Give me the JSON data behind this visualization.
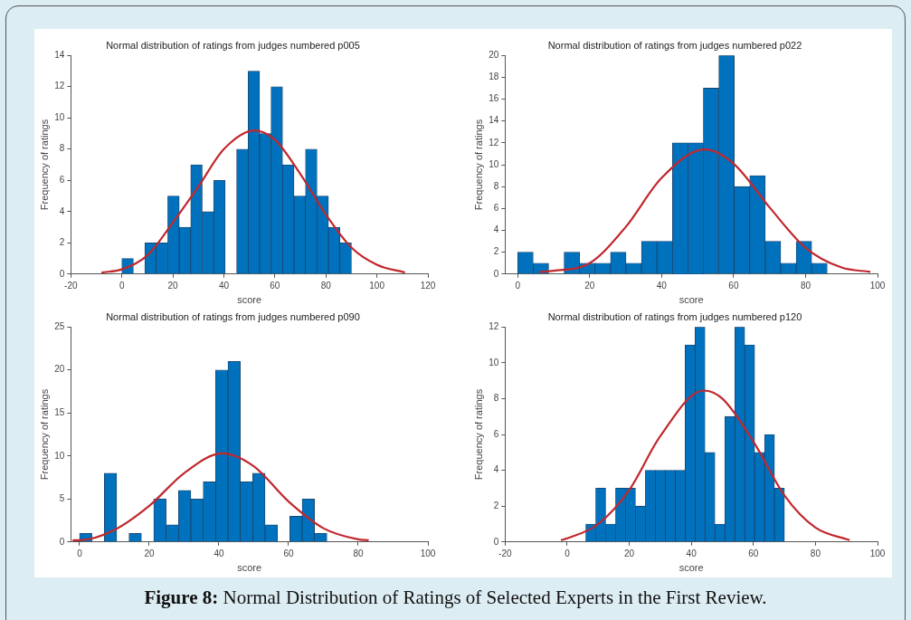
{
  "chart_data": [
    {
      "type": "histogram",
      "title": "Normal distribution of ratings from judges numbered p005",
      "xlabel": "score",
      "ylabel": "Frequency of ratings",
      "color": "#0072bd",
      "bins": [
        0,
        4.5,
        9,
        13.5,
        18,
        22.5,
        27,
        31.5,
        36,
        40.5,
        45,
        49.5,
        54,
        58.5,
        63,
        67.5,
        72,
        76.5,
        81,
        85.5,
        90
      ],
      "values": [
        1,
        0,
        2,
        2,
        5,
        3,
        7,
        4,
        6,
        0,
        8,
        13,
        9,
        12,
        7,
        5,
        8,
        5,
        3,
        2
      ],
      "series": [
        {
          "type": "line",
          "color": "#c1272d",
          "x": [
            -8,
            0,
            10,
            20,
            30,
            40,
            52,
            60,
            70,
            80,
            90,
            100,
            111
          ],
          "values": [
            0.1,
            0.3,
            1.2,
            3.3,
            5.6,
            8.0,
            9.2,
            8.6,
            6.4,
            3.8,
            1.7,
            0.6,
            0.1
          ]
        }
      ],
      "xlim": [
        -20,
        120
      ],
      "xticks": [
        -20,
        0,
        20,
        40,
        60,
        80,
        100,
        120
      ],
      "ylim": [
        0,
        14
      ],
      "yticks": [
        0,
        2,
        4,
        6,
        8,
        10,
        12,
        14
      ],
      "grid": false,
      "annotations": [
        "Figure 8: Normal Distribution of Ratings of Selected Experts in the First Review."
      ]
    },
    {
      "type": "histogram",
      "title": "Normal distribution of ratings from judges numbered p022",
      "xlabel": "score",
      "ylabel": "Frequency of ratings",
      "color": "#0072bd",
      "bins": [
        0,
        4.3,
        8.6,
        12.9,
        17.2,
        21.5,
        25.8,
        30.1,
        34.4,
        38.7,
        43,
        47.3,
        51.6,
        55.9,
        60.2,
        64.5,
        68.8,
        73.1,
        77.4,
        81.7,
        86
      ],
      "values": [
        2,
        1,
        0,
        2,
        1,
        1,
        2,
        1,
        3,
        3,
        12,
        12,
        17,
        20,
        8,
        9,
        3,
        1,
        3,
        1
      ],
      "series": [
        {
          "type": "line",
          "color": "#c1272d",
          "x": [
            6,
            10,
            20,
            30,
            40,
            52,
            60,
            70,
            80,
            90,
            98
          ],
          "values": [
            0.2,
            0.3,
            1.0,
            4.3,
            8.8,
            11.4,
            10.1,
            6.1,
            2.4,
            0.6,
            0.2
          ]
        }
      ],
      "xlim": [
        -3.5,
        100
      ],
      "xticks": [
        0,
        20,
        40,
        60,
        80,
        100
      ],
      "ylim": [
        0,
        20
      ],
      "yticks": [
        0,
        2,
        4,
        6,
        8,
        10,
        12,
        14,
        16,
        18,
        20
      ],
      "grid": false
    },
    {
      "type": "histogram",
      "title": "Normal distribution of ratings from judges numbered p090",
      "xlabel": "score",
      "ylabel": "Frequency of ratings",
      "color": "#0072bd",
      "bins": [
        0,
        3.55,
        7.1,
        10.65,
        14.2,
        17.75,
        21.3,
        24.85,
        28.4,
        31.95,
        35.5,
        39.05,
        42.6,
        46.15,
        49.7,
        53.25,
        56.8,
        60.35,
        63.9,
        67.45,
        71
      ],
      "values": [
        1,
        0,
        8,
        0,
        1,
        0,
        5,
        2,
        6,
        5,
        7,
        20,
        21,
        7,
        8,
        2,
        0,
        3,
        5,
        1
      ],
      "series": [
        {
          "type": "line",
          "color": "#c1272d",
          "x": [
            -2,
            0,
            10,
            20,
            30,
            41,
            50,
            60,
            70,
            80,
            83
          ],
          "values": [
            0.2,
            0.2,
            1.4,
            4.2,
            8.0,
            10.3,
            8.8,
            4.7,
            1.6,
            0.3,
            0.2
          ]
        }
      ],
      "xlim": [
        -2.5,
        100
      ],
      "xticks": [
        0,
        20,
        40,
        60,
        80,
        100
      ],
      "ylim": [
        0,
        25
      ],
      "yticks": [
        0,
        5,
        10,
        15,
        20,
        25
      ],
      "grid": false
    },
    {
      "type": "histogram",
      "title": "Normal distribution of ratings from judges numbered p120",
      "xlabel": "score",
      "ylabel": "Frequency of ratings",
      "color": "#0072bd",
      "bins": [
        6,
        9.2,
        12.4,
        15.6,
        18.8,
        22,
        25.2,
        28.4,
        31.6,
        34.8,
        38,
        41.2,
        44.4,
        47.6,
        50.8,
        54,
        57.2,
        60.4,
        63.6,
        66.8,
        70
      ],
      "values": [
        1,
        3,
        1,
        3,
        3,
        2,
        4,
        4,
        4,
        4,
        11,
        12,
        5,
        1,
        7,
        12,
        11,
        5,
        6,
        3
      ],
      "series": [
        {
          "type": "line",
          "color": "#c1272d",
          "x": [
            -2,
            0,
            10,
            20,
            30,
            44,
            50,
            60,
            70,
            80,
            91
          ],
          "values": [
            0.1,
            0.2,
            1.0,
            2.9,
            5.9,
            8.45,
            8.0,
            5.6,
            2.6,
            0.8,
            0.1
          ]
        }
      ],
      "xlim": [
        -20,
        100
      ],
      "xticks": [
        -20,
        0,
        20,
        40,
        60,
        80,
        100
      ],
      "ylim": [
        0,
        12
      ],
      "yticks": [
        0,
        2,
        4,
        6,
        8,
        10,
        12
      ],
      "grid": false
    }
  ]
}
